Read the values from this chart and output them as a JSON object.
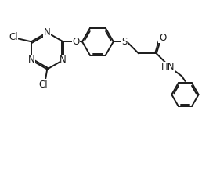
{
  "bg_color": "#ffffff",
  "line_color": "#1a1a1a",
  "line_width": 1.4,
  "font_size": 8.5,
  "figsize": [
    2.81,
    2.38
  ],
  "dpi": 100,
  "xlim": [
    0,
    10
  ],
  "ylim": [
    0,
    8.5
  ]
}
